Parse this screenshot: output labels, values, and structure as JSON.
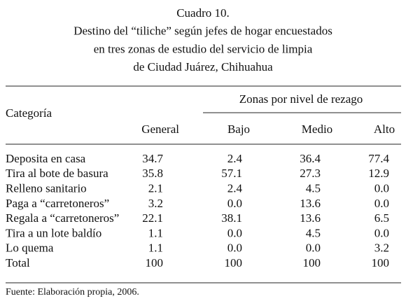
{
  "header": {
    "title_lines": [
      "Cuadro 10.",
      "Destino del “tiliche” según jefes de hogar encuestados",
      "en tres zonas de estudio del servicio de limpia",
      "de Ciudad Juárez, Chihuahua"
    ]
  },
  "table": {
    "group_header": "Zonas por nivel de rezago",
    "columns": [
      "Categoría",
      "General",
      "Bajo",
      "Medio",
      "Alto"
    ],
    "rows": [
      [
        "Deposita en casa",
        "34.7",
        "2.4",
        "36.4",
        "77.4"
      ],
      [
        "Tira al bote de basura",
        "35.8",
        "57.1",
        "27.3",
        "12.9"
      ],
      [
        "Relleno sanitario",
        "2.1",
        "2.4",
        "4.5",
        "0.0"
      ],
      [
        "Paga a “carretoneros”",
        "3.2",
        "0.0",
        "13.6",
        "0.0"
      ],
      [
        "Regala a “carretoneros”",
        "22.1",
        "38.1",
        "13.6",
        "6.5"
      ],
      [
        "Tira a un lote baldío",
        "1.1",
        "0.0",
        "4.5",
        "0.0"
      ],
      [
        "Lo quema",
        "1.1",
        "0.0",
        "0.0",
        "3.2"
      ],
      [
        "Total",
        "100",
        "100",
        "100",
        "100"
      ]
    ]
  },
  "footer": {
    "source": "Fuente: Elaboración propia, 2006."
  }
}
